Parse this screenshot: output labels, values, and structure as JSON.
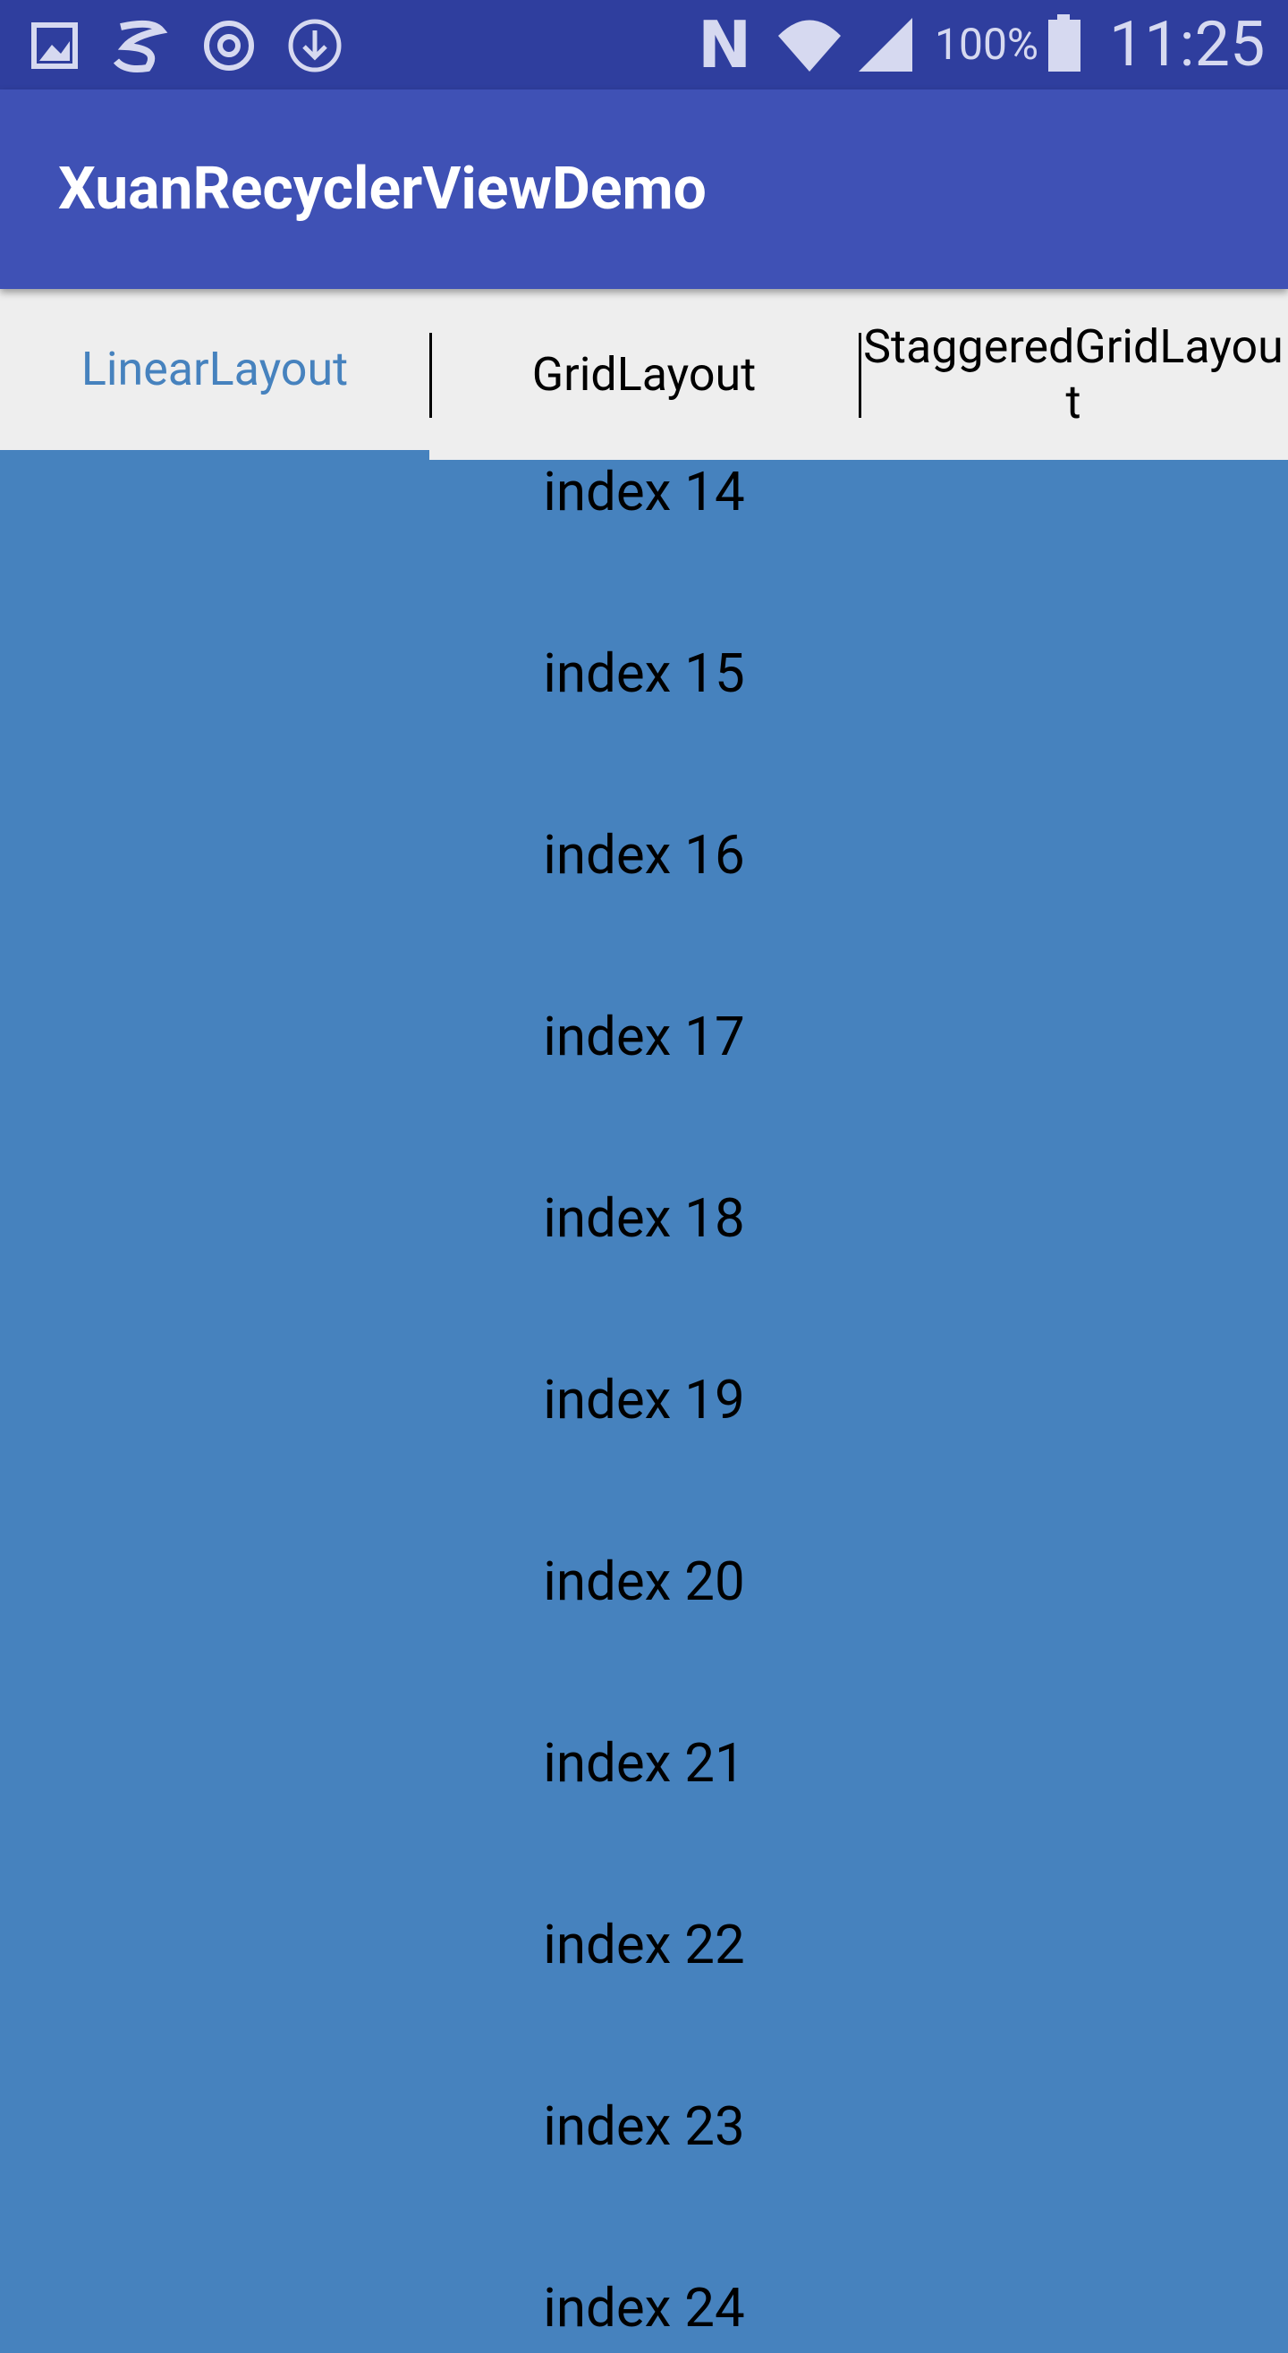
{
  "status_bar": {
    "battery": "100%",
    "time": "11:25"
  },
  "app_bar": {
    "title": "XuanRecyclerViewDemo"
  },
  "tabs": [
    {
      "label": "LinearLayout",
      "selected": true
    },
    {
      "label": "GridLayout",
      "selected": false
    },
    {
      "label": "StaggeredGridLayout",
      "selected": false
    }
  ],
  "list": {
    "items": [
      "index 14",
      "index 15",
      "index 16",
      "index 17",
      "index 18",
      "index 19",
      "index 20",
      "index 21",
      "index 22",
      "index 23",
      "index 24"
    ]
  }
}
